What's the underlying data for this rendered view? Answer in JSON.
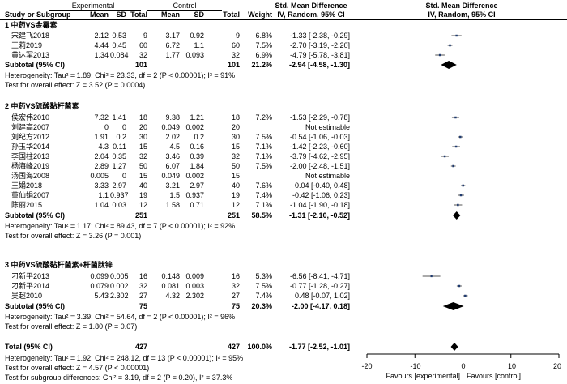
{
  "header": {
    "experimental": "Experimental",
    "control": "Control",
    "smd_label": "Std. Mean Difference",
    "smd_method": "IV, Random, 95% CI",
    "col_study": "Study or Subgroup",
    "col_mean": "Mean",
    "col_sd": "SD",
    "col_total": "Total",
    "col_weight": "Weight"
  },
  "groups": [
    {
      "title": "1 中药VS金霉素",
      "studies": [
        {
          "name": "宋建飞2018",
          "e_mean": "2.12",
          "e_sd": "0.53",
          "e_total": "9",
          "c_mean": "3.17",
          "c_sd": "0.92",
          "c_total": "9",
          "weight": "6.8%",
          "ci": "-1.33 [-2.38, -0.29]"
        },
        {
          "name": "王莉2019",
          "e_mean": "4.44",
          "e_sd": "0.45",
          "e_total": "60",
          "c_mean": "6.72",
          "c_sd": "1.1",
          "c_total": "60",
          "weight": "7.5%",
          "ci": "-2.70 [-3.19, -2.20]"
        },
        {
          "name": "黄达军2013",
          "e_mean": "1.34",
          "e_sd": "0.084",
          "e_total": "32",
          "c_mean": "1.77",
          "c_sd": "0.093",
          "c_total": "32",
          "weight": "6.9%",
          "ci": "-4.79 [-5.78, -3.81]"
        }
      ],
      "subtotal": {
        "label": "Subtotal (95% CI)",
        "e_total": "101",
        "c_total": "101",
        "weight": "21.2%",
        "ci": "-2.94 [-4.58, -1.30]"
      },
      "heterogeneity": "Heterogeneity: Tau² = 1.89; Chi² = 23.33, df = 2 (P < 0.00001); I² = 91%",
      "overall": "Test for overall effect: Z = 3.52 (P = 0.0004)"
    },
    {
      "title": "2 中药VS硫酸黏杆菌素",
      "studies": [
        {
          "name": "侯宏伟2010",
          "e_mean": "7.32",
          "e_sd": "1.41",
          "e_total": "18",
          "c_mean": "9.38",
          "c_sd": "1.21",
          "c_total": "18",
          "weight": "7.2%",
          "ci": "-1.53 [-2.29, -0.78]"
        },
        {
          "name": "刘建高2007",
          "e_mean": "0",
          "e_sd": "0",
          "e_total": "20",
          "c_mean": "0.049",
          "c_sd": "0.002",
          "c_total": "20",
          "weight": "",
          "ci": "Not estimable"
        },
        {
          "name": "刘纪方2012",
          "e_mean": "1.91",
          "e_sd": "0.2",
          "e_total": "30",
          "c_mean": "2.02",
          "c_sd": "0.2",
          "c_total": "30",
          "weight": "7.5%",
          "ci": "-0.54 [-1.06, -0.03]"
        },
        {
          "name": "孙玉华2014",
          "e_mean": "4.3",
          "e_sd": "0.11",
          "e_total": "15",
          "c_mean": "4.5",
          "c_sd": "0.16",
          "c_total": "15",
          "weight": "7.1%",
          "ci": "-1.42 [-2.23, -0.60]"
        },
        {
          "name": "李国柱2013",
          "e_mean": "2.04",
          "e_sd": "0.35",
          "e_total": "32",
          "c_mean": "3.46",
          "c_sd": "0.39",
          "c_total": "32",
          "weight": "7.1%",
          "ci": "-3.79 [-4.62, -2.95]"
        },
        {
          "name": "杨海峰2019",
          "e_mean": "2.89",
          "e_sd": "1.27",
          "e_total": "50",
          "c_mean": "6.07",
          "c_sd": "1.84",
          "c_total": "50",
          "weight": "7.5%",
          "ci": "-2.00 [-2.48, -1.51]"
        },
        {
          "name": "汤国海2008",
          "e_mean": "0.005",
          "e_sd": "0",
          "e_total": "15",
          "c_mean": "0.049",
          "c_sd": "0.002",
          "c_total": "15",
          "weight": "",
          "ci": "Not estimable"
        },
        {
          "name": "王娟2018",
          "e_mean": "3.33",
          "e_sd": "2.97",
          "e_total": "40",
          "c_mean": "3.21",
          "c_sd": "2.97",
          "c_total": "40",
          "weight": "7.6%",
          "ci": "0.04 [-0.40, 0.48]"
        },
        {
          "name": "董仙娟2007",
          "e_mean": "1.1",
          "e_sd": "0.937",
          "e_total": "19",
          "c_mean": "1.5",
          "c_sd": "0.937",
          "c_total": "19",
          "weight": "7.4%",
          "ci": "-0.42 [-1.06, 0.23]"
        },
        {
          "name": "陈丽2015",
          "e_mean": "1.04",
          "e_sd": "0.03",
          "e_total": "12",
          "c_mean": "1.58",
          "c_sd": "0.71",
          "c_total": "12",
          "weight": "7.1%",
          "ci": "-1.04 [-1.90, -0.18]"
        }
      ],
      "subtotal": {
        "label": "Subtotal (95% CI)",
        "e_total": "251",
        "c_total": "251",
        "weight": "58.5%",
        "ci": "-1.31 [-2.10, -0.52]"
      },
      "heterogeneity": "Heterogeneity: Tau² = 1.17; Chi² = 89.43, df = 7 (P < 0.00001); I² = 92%",
      "overall": "Test for overall effect: Z = 3.26 (P = 0.001)"
    },
    {
      "title": "3 中药VS硫酸黏杆菌素+杆菌肽锌",
      "studies": [
        {
          "name": "刁新平2013",
          "e_mean": "0.099",
          "e_sd": "0.005",
          "e_total": "16",
          "c_mean": "0.148",
          "c_sd": "0.009",
          "c_total": "16",
          "weight": "5.3%",
          "ci": "-6.56 [-8.41, -4.71]"
        },
        {
          "name": "刁新平2014",
          "e_mean": "0.079",
          "e_sd": "0.002",
          "e_total": "32",
          "c_mean": "0.081",
          "c_sd": "0.003",
          "c_total": "32",
          "weight": "7.5%",
          "ci": "-0.77 [-1.28, -0.27]"
        },
        {
          "name": "吴超2010",
          "e_mean": "5.43",
          "e_sd": "2.302",
          "e_total": "27",
          "c_mean": "4.32",
          "c_sd": "2.302",
          "c_total": "27",
          "weight": "7.4%",
          "ci": "0.48 [-0.07, 1.02]"
        }
      ],
      "subtotal": {
        "label": "Subtotal (95% CI)",
        "e_total": "75",
        "c_total": "75",
        "weight": "20.3%",
        "ci": "-2.00 [-4.17, 0.18]"
      },
      "heterogeneity": "Heterogeneity: Tau² = 3.39; Chi² = 54.64, df = 2 (P < 0.00001); I² = 96%",
      "overall": "Test for overall effect: Z = 1.80 (P = 0.07)"
    }
  ],
  "total": {
    "label": "Total (95% CI)",
    "e_total": "427",
    "c_total": "427",
    "weight": "100.0%",
    "ci": "-1.77 [-2.52, -1.01]",
    "heterogeneity": "Heterogeneity: Tau² = 1.92; Chi² = 248.12, df = 13 (P < 0.00001); I² = 95%",
    "overall": "Test for overall effect: Z = 4.57 (P < 0.00001)",
    "subgroup": "Test for subgroup differences: Chi² = 3.19, df = 2 (P = 0.20), I² = 37.3%"
  },
  "chart_data": {
    "type": "forest",
    "title": "Std. Mean Difference",
    "subtitle": "IV, Random, 95% CI",
    "xlim": [
      -20,
      20
    ],
    "ticks": [
      -20,
      -10,
      0,
      10,
      20
    ],
    "tick_labels": [
      "-20",
      "-10",
      "0",
      "10",
      "20"
    ],
    "favours_left": "Favours [experimental]",
    "favours_right": "Favours [control]",
    "rows": [
      {
        "kind": "study",
        "smd": -1.33,
        "lo": -2.38,
        "hi": -0.29,
        "weight": 6.8
      },
      {
        "kind": "study",
        "smd": -2.7,
        "lo": -3.19,
        "hi": -2.2,
        "weight": 7.5
      },
      {
        "kind": "study",
        "smd": -4.79,
        "lo": -5.78,
        "hi": -3.81,
        "weight": 6.9
      },
      {
        "kind": "diamond",
        "smd": -2.94,
        "lo": -4.58,
        "hi": -1.3
      },
      {
        "kind": "study",
        "smd": -1.53,
        "lo": -2.29,
        "hi": -0.78,
        "weight": 7.2
      },
      {
        "kind": "none"
      },
      {
        "kind": "study",
        "smd": -0.54,
        "lo": -1.06,
        "hi": -0.03,
        "weight": 7.5
      },
      {
        "kind": "study",
        "smd": -1.42,
        "lo": -2.23,
        "hi": -0.6,
        "weight": 7.1
      },
      {
        "kind": "study",
        "smd": -3.79,
        "lo": -4.62,
        "hi": -2.95,
        "weight": 7.1
      },
      {
        "kind": "study",
        "smd": -2.0,
        "lo": -2.48,
        "hi": -1.51,
        "weight": 7.5
      },
      {
        "kind": "none"
      },
      {
        "kind": "study",
        "smd": 0.04,
        "lo": -0.4,
        "hi": 0.48,
        "weight": 7.6
      },
      {
        "kind": "study",
        "smd": -0.42,
        "lo": -1.06,
        "hi": 0.23,
        "weight": 7.4
      },
      {
        "kind": "study",
        "smd": -1.04,
        "lo": -1.9,
        "hi": -0.18,
        "weight": 7.1
      },
      {
        "kind": "diamond",
        "smd": -1.31,
        "lo": -2.1,
        "hi": -0.52
      },
      {
        "kind": "study",
        "smd": -6.56,
        "lo": -8.41,
        "hi": -4.71,
        "weight": 5.3
      },
      {
        "kind": "study",
        "smd": -0.77,
        "lo": -1.28,
        "hi": -0.27,
        "weight": 7.5
      },
      {
        "kind": "study",
        "smd": 0.48,
        "lo": -0.07,
        "hi": 1.02,
        "weight": 7.4
      },
      {
        "kind": "diamond",
        "smd": -2.0,
        "lo": -4.17,
        "hi": 0.18
      },
      {
        "kind": "diamond",
        "smd": -1.77,
        "lo": -2.52,
        "hi": -1.01
      }
    ]
  }
}
